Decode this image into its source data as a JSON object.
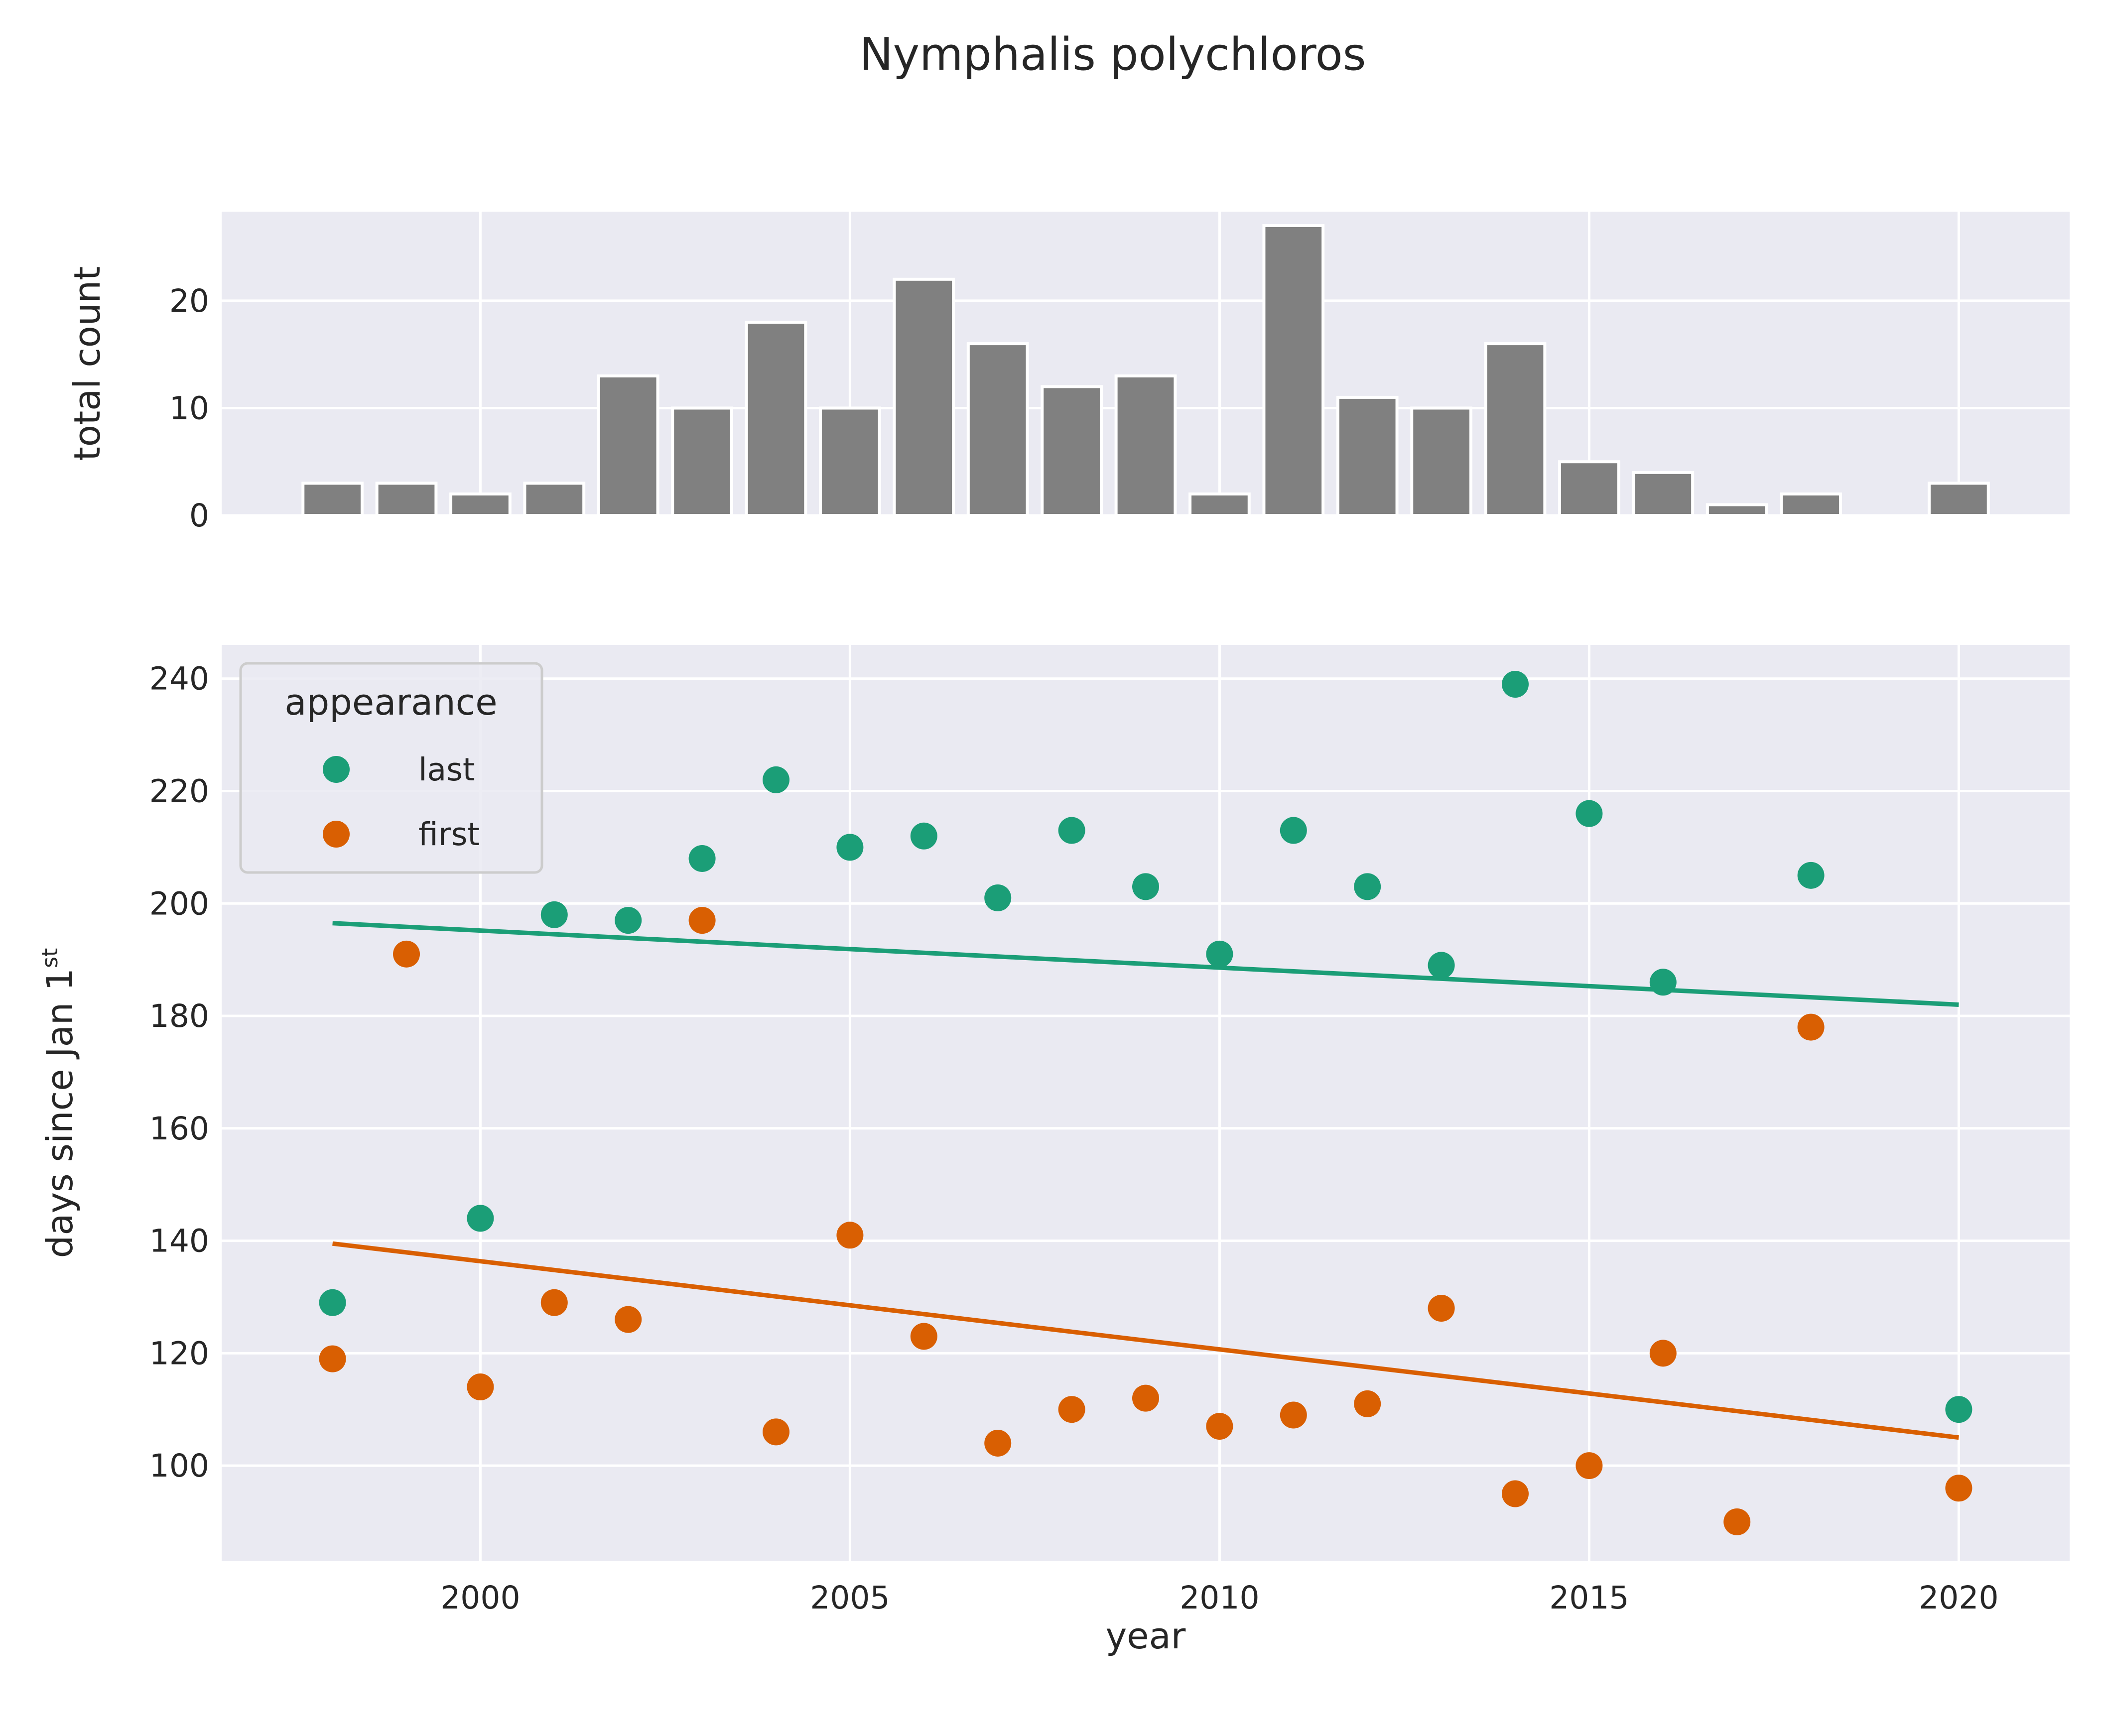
{
  "title": "Nymphalis polychloros",
  "top_panel": {
    "ylabel": "total count",
    "yticks": [
      0,
      10,
      20
    ]
  },
  "bottom_panel": {
    "ylabel_main": "days since Jan 1",
    "ylabel_sup": "st",
    "xlabel": "year",
    "yticks": [
      100,
      120,
      140,
      160,
      180,
      200,
      220,
      240
    ],
    "xticks": [
      2000,
      2005,
      2010,
      2015,
      2020
    ]
  },
  "legend": {
    "title": "appearance",
    "entries": [
      {
        "label": "last",
        "color": "#1b9e77"
      },
      {
        "label": "first",
        "color": "#d95f02"
      }
    ]
  },
  "colors": {
    "panel_bg": "#eaeaf2",
    "grid": "#ffffff",
    "bar": "#808080",
    "last": "#1b9e77",
    "first": "#d95f02"
  },
  "chart_data": [
    {
      "type": "bar",
      "xlabel": "",
      "ylabel": "total count",
      "xlim": [
        1996.5,
        2021.5
      ],
      "ylim": [
        0,
        28.3
      ],
      "categories": [
        1998,
        1999,
        2000,
        2001,
        2002,
        2003,
        2004,
        2005,
        2006,
        2007,
        2008,
        2009,
        2010,
        2011,
        2012,
        2013,
        2014,
        2015,
        2016,
        2017,
        2018,
        2020
      ],
      "values": [
        3,
        3,
        2,
        3,
        13,
        10,
        18,
        10,
        22,
        16,
        12,
        13,
        2,
        27,
        11,
        10,
        16,
        5,
        4,
        1,
        2,
        3
      ],
      "grid": true
    },
    {
      "type": "scatter",
      "xlabel": "year",
      "ylabel": "days since Jan 1st",
      "xlim": [
        1996.5,
        2021.5
      ],
      "ylim": [
        83,
        246
      ],
      "grid": true,
      "legend": "top-left",
      "series": [
        {
          "name": "last",
          "points": [
            [
              1998,
              129
            ],
            [
              2000,
              144
            ],
            [
              2001,
              198
            ],
            [
              2002,
              197
            ],
            [
              2003,
              208
            ],
            [
              2004,
              222
            ],
            [
              2005,
              210
            ],
            [
              2006,
              212
            ],
            [
              2007,
              201
            ],
            [
              2008,
              213
            ],
            [
              2009,
              203
            ],
            [
              2010,
              191
            ],
            [
              2011,
              213
            ],
            [
              2012,
              203
            ],
            [
              2013,
              189
            ],
            [
              2014,
              239
            ],
            [
              2015,
              216
            ],
            [
              2016,
              186
            ],
            [
              2018,
              205
            ],
            [
              2020,
              110
            ]
          ],
          "trend": [
            [
              1998,
              196.5
            ],
            [
              2020,
              182
            ]
          ]
        },
        {
          "name": "first",
          "points": [
            [
              1998,
              119
            ],
            [
              1999,
              191
            ],
            [
              2000,
              114
            ],
            [
              2001,
              129
            ],
            [
              2002,
              126
            ],
            [
              2003,
              197
            ],
            [
              2004,
              106
            ],
            [
              2005,
              141
            ],
            [
              2006,
              123
            ],
            [
              2007,
              104
            ],
            [
              2008,
              110
            ],
            [
              2009,
              112
            ],
            [
              2010,
              107
            ],
            [
              2011,
              109
            ],
            [
              2012,
              111
            ],
            [
              2013,
              128
            ],
            [
              2014,
              95
            ],
            [
              2015,
              100
            ],
            [
              2016,
              120
            ],
            [
              2017,
              90
            ],
            [
              2018,
              178
            ],
            [
              2020,
              96
            ]
          ],
          "trend": [
            [
              1998,
              139.5
            ],
            [
              2020,
              105
            ]
          ]
        }
      ]
    }
  ]
}
